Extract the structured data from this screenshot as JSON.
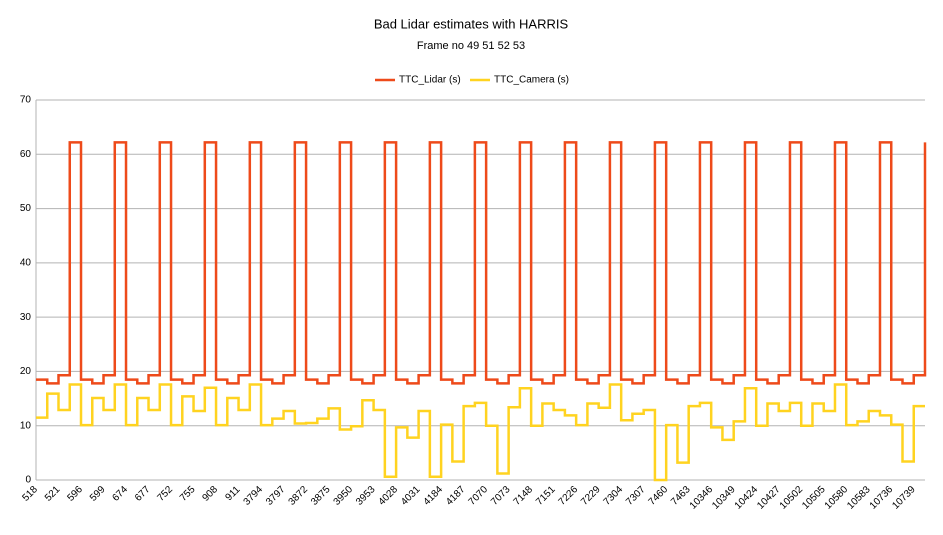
{
  "chart_data": {
    "type": "step-line",
    "title": "Bad Lidar estimates with HARRIS",
    "subtitle": "Frame no 49 51 52 53",
    "categories": [
      "518",
      null,
      "521",
      null,
      "596",
      null,
      "599",
      null,
      "674",
      null,
      "677",
      null,
      "752",
      null,
      "755",
      null,
      "908",
      null,
      "911",
      null,
      "3794",
      null,
      "3797",
      null,
      "3872",
      null,
      "3875",
      null,
      "3950",
      null,
      "3953",
      null,
      "4028",
      null,
      "4031",
      null,
      "4184",
      null,
      "4187",
      null,
      "7070",
      null,
      "7073",
      null,
      "7148",
      null,
      "7151",
      null,
      "7226",
      null,
      "7229",
      null,
      "7304",
      null,
      "7307",
      null,
      "7460",
      null,
      "7463",
      null,
      "10346",
      null,
      "10349",
      null,
      "10424",
      null,
      "10427",
      null,
      "10502",
      null,
      "10505",
      null,
      "10580",
      null,
      "10583",
      null,
      "10736",
      null,
      "10739",
      null
    ],
    "series": [
      {
        "name": "TTC_Lidar (s)",
        "color": "#ee4a1a",
        "values": [
          18.5,
          17.8,
          19.3,
          62.2,
          18.5,
          17.8,
          19.3,
          62.2,
          18.5,
          17.8,
          19.3,
          62.2,
          18.5,
          17.8,
          19.3,
          62.2,
          18.5,
          17.8,
          19.3,
          62.2,
          18.5,
          17.8,
          19.3,
          62.2,
          18.5,
          17.8,
          19.3,
          62.2,
          18.5,
          17.8,
          19.3,
          62.2,
          18.5,
          17.8,
          19.3,
          62.2,
          18.5,
          17.8,
          19.3,
          62.2,
          18.5,
          17.8,
          19.3,
          62.2,
          18.5,
          17.8,
          19.3,
          62.2,
          18.5,
          17.8,
          19.3,
          62.2,
          18.5,
          17.8,
          19.3,
          62.2,
          18.5,
          17.8,
          19.3,
          62.2,
          18.5,
          17.8,
          19.3,
          62.2,
          18.5,
          17.8,
          19.3,
          62.2,
          18.5,
          17.8,
          19.3,
          62.2,
          18.5,
          17.8,
          19.3,
          62.2,
          18.5,
          17.8,
          19.3,
          62.2
        ]
      },
      {
        "name": "TTC_Camera (s)",
        "color": "#ffd320",
        "values": [
          11.5,
          15.9,
          12.9,
          17.6,
          10.1,
          15.1,
          12.9,
          17.6,
          10.1,
          15.1,
          12.9,
          17.6,
          10.1,
          15.4,
          12.7,
          17.0,
          10.1,
          15.1,
          12.9,
          17.6,
          10.1,
          11.3,
          12.7,
          10.4,
          10.5,
          11.3,
          13.2,
          9.3,
          9.9,
          14.7,
          12.9,
          0.6,
          9.7,
          7.8,
          12.7,
          0.6,
          10.2,
          3.4,
          13.6,
          14.2,
          10.0,
          1.2,
          13.4,
          16.9,
          10.0,
          14.1,
          12.9,
          11.9,
          10.1,
          14.1,
          13.3,
          17.6,
          11.0,
          12.2,
          12.9,
          0.0,
          10.1,
          3.2,
          13.6,
          14.2,
          9.7,
          7.4,
          10.8,
          16.9,
          10.0,
          14.1,
          12.7,
          14.2,
          10.0,
          14.1,
          12.7,
          17.6,
          10.1,
          10.8,
          12.7,
          11.9,
          10.2,
          3.4,
          13.6,
          13.6
        ]
      }
    ],
    "ylim": [
      0,
      70
    ],
    "yticks": [
      0,
      10,
      20,
      30,
      40,
      50,
      60,
      70
    ],
    "grid": true
  }
}
